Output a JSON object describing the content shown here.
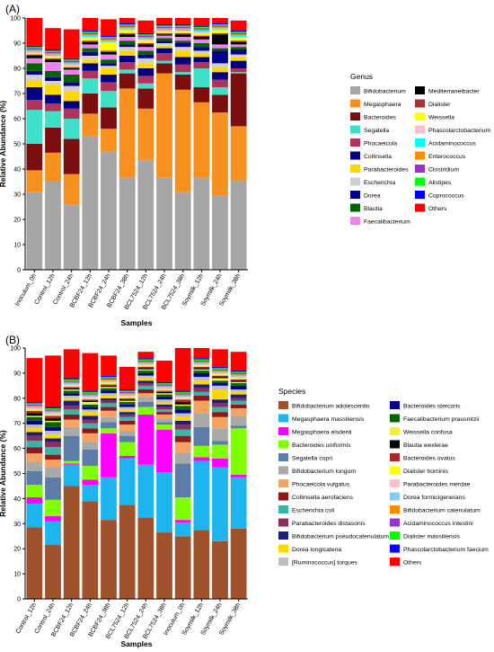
{
  "panels": [
    {
      "label": "(A)"
    },
    {
      "label": "(B)"
    }
  ],
  "chart_data": [
    {
      "type": "bar",
      "stacked": true,
      "ylabel": "Relative Abundance (%)",
      "xlabel": "Samples",
      "ylim": [
        0,
        100
      ],
      "yticks": [
        0,
        10,
        20,
        30,
        40,
        50,
        60,
        70,
        80,
        90,
        100
      ],
      "legend_title": "Genus",
      "legend_position": "right",
      "categories": [
        "Inoculum_0h",
        "Control_12h",
        "Control_24h",
        "BCBF24_12h",
        "BCBF24_24h",
        "BCBF24_38h",
        "BCL7524_12h",
        "BCL7524_24h",
        "BCL7524_38h",
        "Soymilk_12h",
        "Soymilk_24h",
        "Soymilk_38h"
      ],
      "series": [
        {
          "name": "Bifidobacterium",
          "color": "#a6a6a6",
          "values": [
            31,
            35,
            26,
            53,
            47,
            36.5,
            43.5,
            36.5,
            31,
            36.5,
            29.5,
            35.5
          ]
        },
        {
          "name": "Megasphaera",
          "color": "#f7901e",
          "values": [
            8.5,
            11.5,
            12,
            9,
            9,
            35.5,
            20.5,
            41.5,
            40.5,
            30,
            33,
            21.5
          ]
        },
        {
          "name": "Bacteroides",
          "color": "#7b0f0f",
          "values": [
            10.5,
            10,
            14,
            8,
            8.5,
            6,
            8,
            4,
            6,
            6,
            7,
            21
          ]
        },
        {
          "name": "Segatella",
          "color": "#40e0c8",
          "values": [
            13.5,
            6.5,
            8,
            6,
            6.5,
            1.5,
            2,
            1,
            1,
            7.5,
            3,
            0.5
          ]
        },
        {
          "name": "Phocaeicola",
          "color": "#b0335c",
          "values": [
            4,
            3,
            4,
            3,
            3.5,
            3,
            3,
            3,
            3,
            2.5,
            3,
            1.5
          ]
        },
        {
          "name": "Collinsella",
          "color": "#000080",
          "values": [
            5,
            3.5,
            3,
            3,
            3,
            2.5,
            3,
            2,
            3,
            2,
            3,
            3
          ]
        },
        {
          "name": "Parabacteroides",
          "color": "#ffd700",
          "values": [
            2.5,
            4,
            4,
            1.5,
            2.5,
            2,
            2,
            1,
            2.5,
            1.5,
            2,
            1.5
          ]
        },
        {
          "name": "Escherichia",
          "color": "#d0d0d0",
          "values": [
            2.5,
            1.5,
            2,
            1.5,
            1,
            1.5,
            2,
            1,
            1.5,
            1,
            1.5,
            1
          ]
        },
        {
          "name": "Dorea",
          "color": "#00008b",
          "values": [
            1.5,
            1.5,
            1.5,
            1.5,
            1,
            1,
            1.5,
            1,
            1.5,
            1.5,
            5,
            2
          ]
        },
        {
          "name": "Blautia",
          "color": "#006400",
          "values": [
            3,
            2.5,
            3,
            1.5,
            1.5,
            1.5,
            1.5,
            1,
            1,
            1.5,
            1,
            1
          ]
        },
        {
          "name": "Faecalibacterium",
          "color": "#ee82ee",
          "values": [
            2,
            3.5,
            2,
            1.5,
            2,
            1.5,
            1.5,
            1,
            1.5,
            1.5,
            1.5,
            1
          ]
        },
        {
          "name": "Mediterraneibacter",
          "color": "#000000",
          "values": [
            1,
            1,
            0.5,
            1,
            1,
            1,
            1,
            0.5,
            1,
            1,
            4,
            1
          ]
        },
        {
          "name": "Dialister",
          "color": "#a83232",
          "values": [
            0.5,
            0.5,
            0.5,
            0.5,
            0.5,
            0.5,
            0.5,
            0.5,
            0.5,
            0.5,
            0.5,
            0.5
          ]
        },
        {
          "name": "Weissella",
          "color": "#ffff00",
          "values": [
            0.5,
            0.5,
            0.5,
            1,
            3,
            1,
            1,
            0.5,
            0.5,
            1,
            1,
            1
          ]
        },
        {
          "name": "Phascolarctobacterium",
          "color": "#ffc0cb",
          "values": [
            0.5,
            0.5,
            0.5,
            0.5,
            0.5,
            0.5,
            0.5,
            0.5,
            0.5,
            0.5,
            0.5,
            0.5
          ]
        },
        {
          "name": "Acidaminococcus",
          "color": "#00ffff",
          "values": [
            0.5,
            0.5,
            0.5,
            0.5,
            0.5,
            0.5,
            0.5,
            0.5,
            0.5,
            0.5,
            0.5,
            0.5
          ]
        },
        {
          "name": "Enterococcus",
          "color": "#ff8c00",
          "values": [
            0.5,
            0.5,
            0.5,
            0.5,
            0.5,
            0.5,
            0.5,
            0.5,
            0.5,
            0.5,
            0.5,
            0.5
          ]
        },
        {
          "name": "Clostridium",
          "color": "#9932cc",
          "values": [
            0.5,
            0.5,
            0.5,
            0.5,
            0.5,
            0.5,
            0.5,
            0.5,
            0.5,
            0.5,
            0.5,
            0.5
          ]
        },
        {
          "name": "Alistipes",
          "color": "#00ff00",
          "values": [
            0.5,
            0.5,
            0.5,
            0.5,
            0.5,
            0.5,
            0.5,
            0.5,
            0.5,
            0.5,
            0.5,
            0.5
          ]
        },
        {
          "name": "Coprococcus",
          "color": "#0000ff",
          "values": [
            0.5,
            0.5,
            0.5,
            0.5,
            0.5,
            0.5,
            0.5,
            0.5,
            0.5,
            0.5,
            0.5,
            0.5
          ]
        },
        {
          "name": "Others",
          "color": "#ff0000",
          "values": [
            11,
            8.5,
            11.5,
            6,
            6.5,
            4,
            5,
            3.5,
            2.5,
            3.5,
            3.5,
            4
          ]
        }
      ]
    },
    {
      "type": "bar",
      "stacked": true,
      "ylabel": "Relative Abundance (%)",
      "xlabel": "Samples",
      "ylim": [
        0,
        100
      ],
      "yticks": [
        0,
        10,
        20,
        30,
        40,
        50,
        60,
        70,
        80,
        90,
        100
      ],
      "legend_title": "Species",
      "legend_position": "right",
      "categories": [
        "Control_12h",
        "Control_24h",
        "BCBF24_12h",
        "BCBF24_24h",
        "BCBF24_38h",
        "BCL7524_12h",
        "BCL7524_24h",
        "BCL7524_38h",
        "Inoculum_0h",
        "Soymilk_12h",
        "Soymilk_24h",
        "Soymilk_38h"
      ],
      "series": [
        {
          "name": "Bifidobacterium adolescentis",
          "color": "#a0522d",
          "values": [
            28.5,
            21.5,
            45,
            39,
            31.5,
            37.5,
            32.5,
            26.5,
            25,
            27.5,
            23,
            28
          ]
        },
        {
          "name": "Megasphaera massiliensis",
          "color": "#1eb4f0",
          "values": [
            9.5,
            9.5,
            8.5,
            6.5,
            17,
            18.5,
            21,
            24,
            5.5,
            27.5,
            29.5,
            20.5
          ]
        },
        {
          "name": "Megasphaera elsdenii",
          "color": "#ff00ff",
          "values": [
            2.5,
            2,
            0.5,
            2,
            17.5,
            1,
            20,
            17,
            1,
            1.5,
            3.5,
            1
          ]
        },
        {
          "name": "Bacteroides uniformis",
          "color": "#7fff00",
          "values": [
            5,
            6.5,
            1,
            5.5,
            2,
            5.5,
            3,
            2,
            9,
            4.5,
            5.5,
            18.5
          ]
        },
        {
          "name": "Segatella copri",
          "color": "#5b7da8",
          "values": [
            5.5,
            9,
            10,
            6.5,
            2.5,
            2.5,
            2,
            1,
            13.5,
            7.5,
            1.5,
            1
          ]
        },
        {
          "name": "Bifidobacterium longum",
          "color": "#a9a9a9",
          "values": [
            3.5,
            4,
            3.5,
            3,
            2,
            2,
            2,
            1.5,
            4.5,
            5.5,
            5,
            4
          ]
        },
        {
          "name": "Phocaeicola vulgatus",
          "color": "#f4a460",
          "values": [
            3.5,
            3,
            3,
            3.5,
            2.5,
            2.5,
            1.5,
            1.5,
            4,
            5,
            4.5,
            3
          ]
        },
        {
          "name": "Collinsella aerofaciens",
          "color": "#8b1a1a",
          "values": [
            2.5,
            2,
            2,
            2,
            1.5,
            1.5,
            1.5,
            1,
            2.5,
            2,
            2,
            1.5
          ]
        },
        {
          "name": "Escherichia coli",
          "color": "#3cb3a8",
          "values": [
            2.5,
            3,
            2,
            2,
            1.5,
            1.5,
            1.5,
            1,
            2.5,
            1.5,
            2,
            1.5
          ]
        },
        {
          "name": "Parabacteroides distasonis",
          "color": "#8b2f5b",
          "values": [
            2,
            2,
            1.5,
            1.5,
            1,
            1,
            1,
            1,
            2,
            1.5,
            1.5,
            1
          ]
        },
        {
          "name": "Bifidobacterium pseudocatenulatum",
          "color": "#1e1e7a",
          "values": [
            1.5,
            1.5,
            2,
            1.5,
            1,
            1,
            1,
            1,
            1.5,
            1.5,
            1.5,
            1.5
          ]
        },
        {
          "name": "Dorea longicatena",
          "color": "#ffd700",
          "values": [
            1.5,
            1.5,
            1,
            1.5,
            1,
            1,
            1,
            1,
            1.5,
            1.5,
            4,
            1
          ]
        },
        {
          "name": "[Ruminococcus] torques",
          "color": "#c0c0c0",
          "values": [
            1.5,
            1.5,
            1,
            1,
            1,
            1,
            1,
            1,
            1.5,
            1.5,
            1.5,
            1
          ]
        },
        {
          "name": "Bacteroides stercoris",
          "color": "#00008b",
          "values": [
            1.5,
            1.5,
            1,
            1,
            1,
            1,
            1,
            1,
            1.5,
            1.5,
            1,
            1.5
          ]
        },
        {
          "name": "Faecalibacterium prausnitzii",
          "color": "#006400",
          "values": [
            1.5,
            2,
            1,
            1,
            1,
            1,
            1,
            1,
            1.5,
            1,
            1,
            1
          ]
        },
        {
          "name": "Weissella confusa",
          "color": "#f0f03c",
          "values": [
            0.5,
            0.5,
            0.5,
            1,
            0.5,
            0.5,
            0.5,
            0.5,
            0.5,
            0.5,
            1,
            0.5
          ]
        },
        {
          "name": "Blautia wexlerae",
          "color": "#000000",
          "values": [
            1,
            1,
            0.5,
            0.5,
            0.5,
            0.5,
            0.5,
            0.5,
            1,
            0.5,
            0.5,
            0.5
          ]
        },
        {
          "name": "Bacteroides ovatus",
          "color": "#a52a2a",
          "values": [
            1,
            1,
            0.5,
            0.5,
            0.5,
            0.5,
            0.5,
            0.5,
            1,
            0.5,
            0.5,
            0.5
          ]
        },
        {
          "name": "Dialister hominis",
          "color": "#ffff00",
          "values": [
            0.5,
            0.5,
            0.5,
            0.5,
            0.5,
            0.5,
            0.5,
            0.5,
            0.5,
            0.5,
            0.5,
            0.5
          ]
        },
        {
          "name": "Parabacteroides merdae",
          "color": "#ffc0cb",
          "values": [
            0.5,
            0.5,
            0.5,
            0.5,
            0.5,
            0.5,
            0.5,
            0.5,
            0.5,
            0.5,
            0.5,
            0.5
          ]
        },
        {
          "name": "Dorea formicigenerans",
          "color": "#87ceeb",
          "values": [
            0.5,
            0.5,
            0.5,
            0.5,
            0.5,
            0.5,
            0.5,
            0.5,
            0.5,
            0.5,
            0.5,
            0.5
          ]
        },
        {
          "name": "Bifidobacterium catenulatum",
          "color": "#ff8c00",
          "values": [
            0.5,
            0.5,
            0.5,
            0.5,
            0.5,
            0.5,
            0.5,
            0.5,
            0.5,
            0.5,
            0.5,
            0.5
          ]
        },
        {
          "name": "Acidaminococcus intestini",
          "color": "#9932cc",
          "values": [
            0.5,
            0.5,
            0.5,
            0.5,
            0.5,
            0.5,
            0.5,
            0.5,
            0.5,
            0.5,
            0.5,
            0.5
          ]
        },
        {
          "name": "Dialister massiliensis",
          "color": "#00ff00",
          "values": [
            0.5,
            0.5,
            0.5,
            0.5,
            0.5,
            0.5,
            0.5,
            0.5,
            0.5,
            0.5,
            0.5,
            0.5
          ]
        },
        {
          "name": "Phascolarctobacterium faecium",
          "color": "#0000ff",
          "values": [
            0.5,
            0.5,
            0.5,
            0.5,
            0.5,
            0.5,
            0.5,
            0.5,
            0.5,
            0.5,
            0.5,
            0.5
          ]
        },
        {
          "name": "Others",
          "color": "#ff0000",
          "values": [
            17.5,
            20.5,
            11.5,
            15,
            8,
            9,
            2.5,
            8.5,
            19,
            6,
            7,
            7.5
          ]
        }
      ]
    }
  ]
}
